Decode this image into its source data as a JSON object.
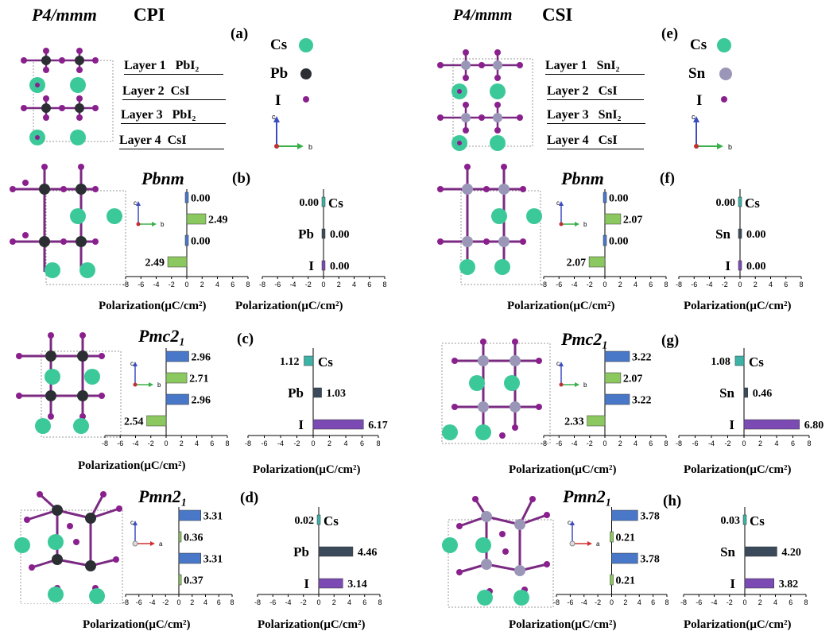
{
  "left": {
    "phase_title": "P4/mmm",
    "material": "CPI",
    "panel_a": "(a)",
    "layers": [
      {
        "name": "Layer 1",
        "composition": "PbI₂"
      },
      {
        "name": "Layer 2",
        "composition": "CsI"
      },
      {
        "name": "Layer 3",
        "composition": "PbI₂"
      },
      {
        "name": "Layer 4",
        "composition": "CsI"
      }
    ],
    "legend": [
      {
        "label": "Cs",
        "color": "#3cc99a"
      },
      {
        "label": "Pb",
        "color": "#2b2f33"
      },
      {
        "label": "I",
        "color": "#8a1f8e"
      }
    ],
    "rows": [
      {
        "phase": "Pbnm",
        "panel": "(b)",
        "xlabel_layer": "Polarization(μC/cm²)",
        "xlabel_atom": "Polarization(μC/cm²)"
      },
      {
        "phase": "Pmc2₁",
        "panel": "(c)",
        "xlabel_layer": "Polarization(μC/cm²)",
        "xlabel_atom": "Polarization(μC/cm²)"
      },
      {
        "phase": "Pmn2₁",
        "panel": "(d)",
        "xlabel_layer": "Polarization(μC/cm²)",
        "xlabel_atom": "Polarization(μC/cm²)"
      }
    ]
  },
  "right": {
    "phase_title": "P4/mmm",
    "material": "CSI",
    "panel_e": "(e)",
    "layers": [
      {
        "name": "Layer 1",
        "composition": "SnI₂"
      },
      {
        "name": "Layer 2",
        "composition": "CsI"
      },
      {
        "name": "Layer 3",
        "composition": "SnI₂"
      },
      {
        "name": "Layer 4",
        "composition": "CsI"
      }
    ],
    "legend": [
      {
        "label": "Cs",
        "color": "#3cc99a"
      },
      {
        "label": "Sn",
        "color": "#9a96b8"
      },
      {
        "label": "I",
        "color": "#8a1f8e"
      }
    ],
    "rows": [
      {
        "phase": "Pbnm",
        "panel": "(f)",
        "xlabel_layer": "Polarization(μC/cm²)",
        "xlabel_atom": "Polarization(μC/cm²)"
      },
      {
        "phase": "Pmc2₁",
        "panel": "(g)",
        "xlabel_layer": "Polarization(μC/cm²)",
        "xlabel_atom": "Polarization(μC/cm²)"
      },
      {
        "phase": "Pmn2₁",
        "panel": "(h)",
        "xlabel_layer": "Polarization(μC/cm²)",
        "xlabel_atom": "Polarization(μC/cm²)"
      }
    ]
  },
  "axis_labels": {
    "c": "c",
    "b": "b",
    "a": "a"
  },
  "colors": {
    "cs_bar": "#3cb3a6",
    "pb_bar": "#3b4a5a",
    "sn_bar": "#3b4a5a",
    "i_bar": "#7b4ab3",
    "layer_blue": "#4a78c8",
    "layer_green": "#8cc860"
  },
  "chart_data": [
    {
      "id": "b_layer",
      "type": "bar",
      "orientation": "horizontal",
      "xlim": [
        -8,
        8
      ],
      "ticks": [
        -8,
        -6,
        -4,
        -2,
        0,
        2,
        4,
        6,
        8
      ],
      "bars": [
        {
          "value": 0.0,
          "label": "0.00",
          "color": "#4a78c8"
        },
        {
          "value": 2.49,
          "label": "2.49",
          "color": "#8cc860"
        },
        {
          "value": 0.0,
          "label": "0.00",
          "color": "#4a78c8"
        },
        {
          "value": -2.49,
          "label": "2.49",
          "color": "#8cc860"
        }
      ]
    },
    {
      "id": "b_atom",
      "type": "bar",
      "orientation": "horizontal",
      "xlim": [
        -8,
        8
      ],
      "ticks": [
        -8,
        -6,
        -4,
        -2,
        0,
        2,
        4,
        6,
        8
      ],
      "bars": [
        {
          "category": "Cs",
          "value": 0.0,
          "label": "0.00",
          "color": "#3cb3a6"
        },
        {
          "category": "Pb",
          "value": 0.0,
          "label": "0.00",
          "color": "#3b4a5a"
        },
        {
          "category": "I",
          "value": 0.0,
          "label": "0.00",
          "color": "#7b4ab3"
        }
      ]
    },
    {
      "id": "c_layer",
      "type": "bar",
      "orientation": "horizontal",
      "xlim": [
        -8,
        8
      ],
      "ticks": [
        -8,
        -6,
        -4,
        -2,
        0,
        2,
        4,
        6,
        8
      ],
      "bars": [
        {
          "value": 2.96,
          "label": "2.96",
          "color": "#4a78c8"
        },
        {
          "value": 2.71,
          "label": "2.71",
          "color": "#8cc860"
        },
        {
          "value": 2.96,
          "label": "2.96",
          "color": "#4a78c8"
        },
        {
          "value": -2.54,
          "label": "2.54",
          "color": "#8cc860"
        }
      ]
    },
    {
      "id": "c_atom",
      "type": "bar",
      "orientation": "horizontal",
      "xlim": [
        -8,
        8
      ],
      "ticks": [
        -8,
        -6,
        -4,
        -2,
        0,
        2,
        4,
        6,
        8
      ],
      "bars": [
        {
          "category": "Cs",
          "value": -1.12,
          "label": "1.12",
          "color": "#3cb3a6"
        },
        {
          "category": "Pb",
          "value": 1.03,
          "label": "1.03",
          "color": "#3b4a5a"
        },
        {
          "category": "I",
          "value": 6.17,
          "label": "6.17",
          "color": "#7b4ab3"
        }
      ]
    },
    {
      "id": "d_layer",
      "type": "bar",
      "orientation": "horizontal",
      "xlim": [
        -8,
        8
      ],
      "ticks": [
        -8,
        -6,
        -4,
        -2,
        0,
        2,
        4,
        6,
        8
      ],
      "bars": [
        {
          "value": 3.31,
          "label": "3.31",
          "color": "#4a78c8"
        },
        {
          "value": 0.36,
          "label": "0.36",
          "color": "#8cc860"
        },
        {
          "value": 3.31,
          "label": "3.31",
          "color": "#4a78c8"
        },
        {
          "value": 0.37,
          "label": "0.37",
          "color": "#8cc860"
        }
      ]
    },
    {
      "id": "d_atom",
      "type": "bar",
      "orientation": "horizontal",
      "xlim": [
        -8,
        8
      ],
      "ticks": [
        -8,
        -6,
        -4,
        -2,
        0,
        2,
        4,
        6,
        8
      ],
      "bars": [
        {
          "category": "Cs",
          "value": -0.02,
          "label": "0.02",
          "color": "#3cb3a6"
        },
        {
          "category": "Pb",
          "value": 4.46,
          "label": "4.46",
          "color": "#3b4a5a"
        },
        {
          "category": "I",
          "value": 3.14,
          "label": "3.14",
          "color": "#7b4ab3"
        }
      ]
    },
    {
      "id": "f_layer",
      "type": "bar",
      "orientation": "horizontal",
      "xlim": [
        -8,
        8
      ],
      "ticks": [
        -8,
        -6,
        -4,
        -2,
        0,
        2,
        4,
        6,
        8
      ],
      "bars": [
        {
          "value": 0.0,
          "label": "0.00",
          "color": "#4a78c8"
        },
        {
          "value": 2.07,
          "label": "2.07",
          "color": "#8cc860"
        },
        {
          "value": 0.0,
          "label": "0.00",
          "color": "#4a78c8"
        },
        {
          "value": -2.07,
          "label": "2.07",
          "color": "#8cc860"
        }
      ]
    },
    {
      "id": "f_atom",
      "type": "bar",
      "orientation": "horizontal",
      "xlim": [
        -8,
        8
      ],
      "ticks": [
        -8,
        -6,
        -4,
        -2,
        0,
        2,
        4,
        6,
        8
      ],
      "bars": [
        {
          "category": "Cs",
          "value": 0.0,
          "label": "0.00",
          "color": "#3cb3a6"
        },
        {
          "category": "Sn",
          "value": 0.0,
          "label": "0.00",
          "color": "#3b4a5a"
        },
        {
          "category": "I",
          "value": 0.0,
          "label": "0.00",
          "color": "#7b4ab3"
        }
      ]
    },
    {
      "id": "g_layer",
      "type": "bar",
      "orientation": "horizontal",
      "xlim": [
        -8,
        8
      ],
      "ticks": [
        -8,
        -6,
        -4,
        -2,
        0,
        2,
        4,
        6,
        8
      ],
      "bars": [
        {
          "value": 3.22,
          "label": "3.22",
          "color": "#4a78c8"
        },
        {
          "value": 2.07,
          "label": "2.07",
          "color": "#8cc860"
        },
        {
          "value": 3.22,
          "label": "3.22",
          "color": "#4a78c8"
        },
        {
          "value": -2.33,
          "label": "2.33",
          "color": "#8cc860"
        }
      ]
    },
    {
      "id": "g_atom",
      "type": "bar",
      "orientation": "horizontal",
      "xlim": [
        -8,
        8
      ],
      "ticks": [
        -8,
        -6,
        -4,
        -2,
        0,
        2,
        4,
        6,
        8
      ],
      "bars": [
        {
          "category": "Cs",
          "value": -1.08,
          "label": "1.08",
          "color": "#3cb3a6"
        },
        {
          "category": "Sn",
          "value": 0.46,
          "label": "0.46",
          "color": "#3b4a5a"
        },
        {
          "category": "I",
          "value": 6.8,
          "label": "6.80",
          "color": "#7b4ab3"
        }
      ]
    },
    {
      "id": "h_layer",
      "type": "bar",
      "orientation": "horizontal",
      "xlim": [
        -8,
        8
      ],
      "ticks": [
        -8,
        -6,
        -4,
        -2,
        0,
        2,
        4,
        6,
        8
      ],
      "bars": [
        {
          "value": 3.78,
          "label": "3.78",
          "color": "#4a78c8"
        },
        {
          "value": 0.21,
          "label": "0.21",
          "color": "#8cc860"
        },
        {
          "value": 3.78,
          "label": "3.78",
          "color": "#4a78c8"
        },
        {
          "value": 0.21,
          "label": "0.21",
          "color": "#8cc860"
        }
      ]
    },
    {
      "id": "h_atom",
      "type": "bar",
      "orientation": "horizontal",
      "xlim": [
        -8,
        8
      ],
      "ticks": [
        -8,
        -6,
        -4,
        -2,
        0,
        2,
        4,
        6,
        8
      ],
      "bars": [
        {
          "category": "Cs",
          "value": -0.03,
          "label": "0.03",
          "color": "#3cb3a6"
        },
        {
          "category": "Sn",
          "value": 4.2,
          "label": "4.20",
          "color": "#3b4a5a"
        },
        {
          "category": "I",
          "value": 3.82,
          "label": "3.82",
          "color": "#7b4ab3"
        }
      ]
    }
  ]
}
